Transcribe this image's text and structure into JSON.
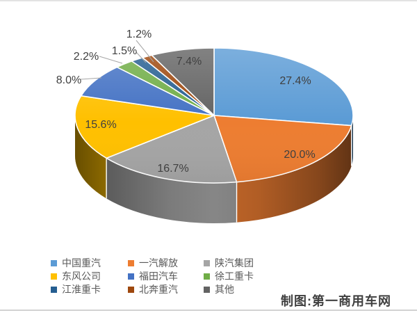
{
  "credit": {
    "text": "制图:第一商用车网"
  },
  "chart_data": {
    "type": "pie",
    "style": "3d-exploded-none",
    "title": "",
    "unit": "percent",
    "total": 100.0,
    "start_angle_deg": 0,
    "direction": "clockwise",
    "label_color": "#404040",
    "legend_position": "bottom",
    "legend_columns": 3,
    "slices": [
      {
        "name": "中国重汽",
        "value": 27.4,
        "label": "27.4%",
        "color": "#5B9BD5"
      },
      {
        "name": "一汽解放",
        "value": 20.0,
        "label": "20.0%",
        "color": "#ED7D31"
      },
      {
        "name": "陕汽集团",
        "value": 16.7,
        "label": "16.7%",
        "color": "#A5A5A5"
      },
      {
        "name": "东风公司",
        "value": 15.6,
        "label": "15.6%",
        "color": "#FFC000"
      },
      {
        "name": "福田汽车",
        "value": 8.0,
        "label": "8.0%",
        "color": "#4472C4"
      },
      {
        "name": "徐工重卡",
        "value": 2.2,
        "label": "2.2%",
        "color": "#70AD47"
      },
      {
        "name": "江淮重卡",
        "value": 1.5,
        "label": "1.5%",
        "color": "#255E91"
      },
      {
        "name": "北奔重汽",
        "value": 1.2,
        "label": "1.2%",
        "color": "#9E480E"
      },
      {
        "name": "其他",
        "value": 7.4,
        "label": "7.4%",
        "color": "#636363"
      }
    ]
  }
}
